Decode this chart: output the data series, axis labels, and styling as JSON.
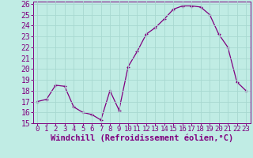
{
  "x": [
    0,
    1,
    2,
    3,
    4,
    5,
    6,
    7,
    8,
    9,
    10,
    11,
    12,
    13,
    14,
    15,
    16,
    17,
    18,
    19,
    20,
    21,
    22,
    23
  ],
  "y": [
    17,
    17.2,
    18.5,
    18.4,
    16.5,
    16.0,
    15.8,
    15.3,
    18.0,
    16.2,
    20.2,
    21.6,
    23.2,
    23.8,
    24.6,
    25.5,
    25.8,
    25.8,
    25.7,
    25.0,
    23.2,
    22.0,
    18.8,
    18.0
  ],
  "line_color": "#800080",
  "bg_color": "#c0ece4",
  "grid_color": "#a8d8d0",
  "xlabel": "Windchill (Refroidissement éolien,°C)",
  "ylim": [
    15,
    26
  ],
  "xlim_min": -0.5,
  "xlim_max": 23.5,
  "yticks": [
    15,
    16,
    17,
    18,
    19,
    20,
    21,
    22,
    23,
    24,
    25,
    26
  ],
  "xticks": [
    0,
    1,
    2,
    3,
    4,
    5,
    6,
    7,
    8,
    9,
    10,
    11,
    12,
    13,
    14,
    15,
    16,
    17,
    18,
    19,
    20,
    21,
    22,
    23
  ],
  "tick_color": "#800080",
  "label_color": "#800080",
  "font_size_x": 6.5,
  "font_size_y": 7.0,
  "xlabel_size": 7.5
}
